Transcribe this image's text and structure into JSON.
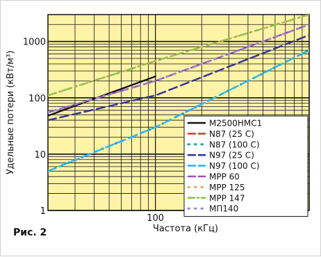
{
  "figure_label": "Рис. 2",
  "chart_data": {
    "type": "line",
    "title": "",
    "xlabel": "Частота (кГц)",
    "ylabel": "Удельные потери (кВт/м³)",
    "x_scale": "log",
    "y_scale": "log",
    "xlim": [
      20,
      1000
    ],
    "ylim": [
      1,
      3000
    ],
    "x_tick_labels": [
      {
        "value": 100,
        "label": "100"
      }
    ],
    "y_tick_labels": [
      {
        "value": 1,
        "label": "1"
      },
      {
        "value": 10,
        "label": "10"
      },
      {
        "value": 100,
        "label": "100"
      },
      {
        "value": 1000,
        "label": "1000"
      }
    ],
    "grid": true,
    "background": "#fff3a8",
    "legend_position": "bottom-right",
    "series": [
      {
        "name": "M2500HMC1",
        "color": "#111111",
        "style": "solid",
        "x": [
          20,
          100
        ],
        "y": [
          48,
          240
        ]
      },
      {
        "name": "N87 (25 C)",
        "color": "#e53935",
        "style": "dash",
        "x": [
          20,
          100,
          1000
        ],
        "y": [
          40,
          110,
          1300
        ]
      },
      {
        "name": "N87 (100 C)",
        "color": "#1aa39a",
        "style": "dot",
        "x": [
          20,
          100,
          1000
        ],
        "y": [
          5,
          30,
          700
        ]
      },
      {
        "name": "N97 (25 C)",
        "color": "#2a3a9e",
        "style": "dash",
        "x": [
          20,
          100,
          1000
        ],
        "y": [
          40,
          110,
          1300
        ]
      },
      {
        "name": "N97 (100 C)",
        "color": "#29b6f6",
        "style": "dash",
        "x": [
          20,
          100,
          1000
        ],
        "y": [
          5,
          30,
          700
        ]
      },
      {
        "name": "MPP 60",
        "color": "#9c4fb3",
        "style": "dash",
        "x": [
          20,
          100,
          1000
        ],
        "y": [
          55,
          200,
          2000
        ]
      },
      {
        "name": "MPP 125",
        "color": "#f5a05a",
        "style": "dot",
        "x": [
          20,
          100,
          1000
        ],
        "y": [
          110,
          450,
          3000
        ]
      },
      {
        "name": "MPP 147",
        "color": "#8bc34a",
        "style": "dashdot",
        "x": [
          20,
          100,
          1000
        ],
        "y": [
          110,
          450,
          3000
        ]
      },
      {
        "name": "МП140",
        "color": "#8e8fd9",
        "style": "dot",
        "x": [
          20,
          100,
          1000
        ],
        "y": [
          55,
          200,
          2000
        ]
      }
    ]
  }
}
